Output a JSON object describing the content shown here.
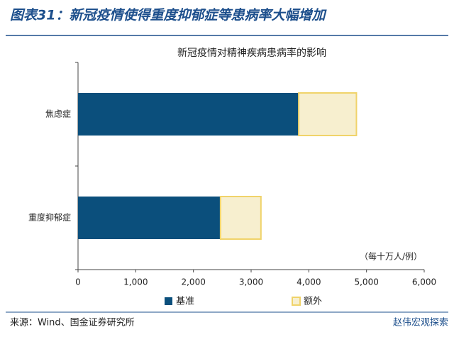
{
  "header": "图表31：新冠疫情使得重度抑郁症等患病率大幅增加",
  "source": "来源：Wind、国金证券研究所",
  "watermark": "赵伟宏观探索",
  "chart_data": {
    "type": "hbar_stacked",
    "title": "新冠疫情对精神疾病患病率的影响",
    "unit_note": "（每十万人/例）",
    "categories": [
      "焦虑症",
      "重度抑郁症"
    ],
    "series": [
      {
        "name": "基准",
        "color": "#0b4f7c",
        "values": [
          3825,
          2470
        ]
      },
      {
        "name": "额外",
        "color": "#f7efcf",
        "edge": "#f0d36a",
        "values": [
          1000,
          700
        ]
      }
    ],
    "xlim": [
      0,
      6000
    ],
    "xticks": [
      0,
      {
        "value": 1000,
        "label": "1,000"
      },
      {
        "value": 2000,
        "label": "2,000"
      },
      {
        "value": 3000,
        "label": "3,000"
      },
      {
        "value": 4000,
        "label": "4,000"
      },
      {
        "value": 5000,
        "label": "5,000"
      },
      {
        "value": 6000,
        "label": "6,000"
      }
    ],
    "legend": "bottom"
  }
}
